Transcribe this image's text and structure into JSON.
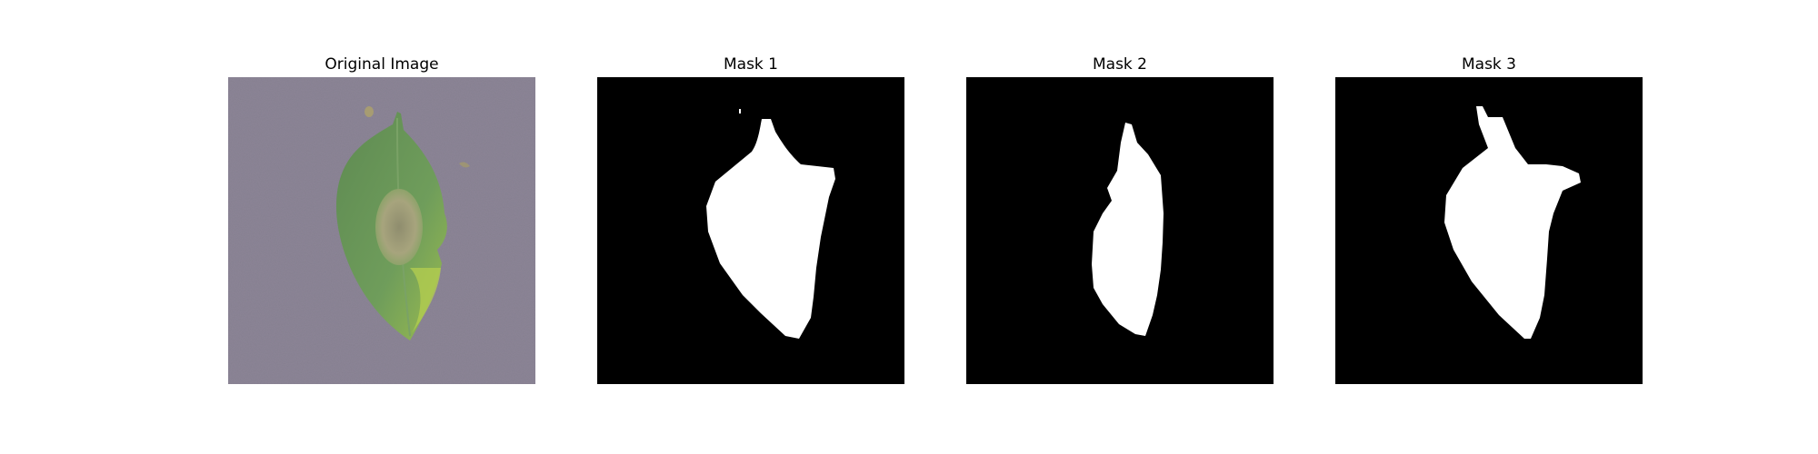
{
  "figure": {
    "panels": [
      {
        "title": "Original Image"
      },
      {
        "title": "Mask 1"
      },
      {
        "title": "Mask 2"
      },
      {
        "title": "Mask 3"
      }
    ]
  },
  "colors": {
    "background": "#8c8596",
    "mask_background": "#000000",
    "mask_foreground": "#ffffff",
    "leaf_green": "#6e9c5a",
    "leaf_dark_green": "#567f45",
    "lesion": "#9e9a78"
  }
}
